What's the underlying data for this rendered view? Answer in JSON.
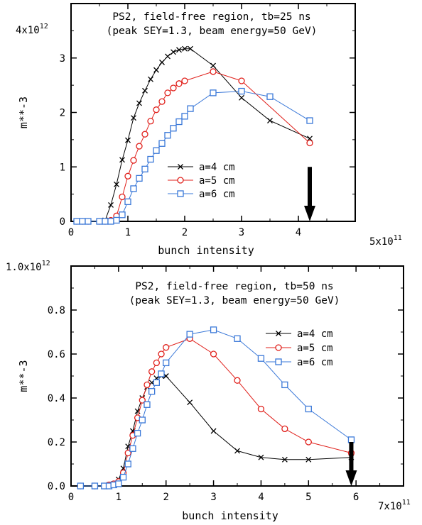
{
  "chart_data": [
    {
      "type": "line",
      "title": "PS2, field-free region, tb=25 ns",
      "subtitle": "(peak SEY=1.3, beam energy=50 GeV)",
      "xlabel": "bunch intensity",
      "ylabel": "m**-3",
      "x_scale_mantissa": "5x10",
      "x_scale_exponent": "11",
      "y_scale_mantissa": "4x10",
      "y_scale_exponent": "12",
      "xlim": [
        0,
        5
      ],
      "ylim": [
        0,
        4
      ],
      "x_ticks": [
        0,
        1,
        2,
        3,
        4
      ],
      "y_ticks": [
        0,
        1,
        2,
        3
      ],
      "grid": false,
      "legend_position": "lower-center",
      "arrow_x": 4.2,
      "series": [
        {
          "name": "a=4 cm",
          "marker": "x",
          "color": "#000000",
          "x": [
            0.1,
            0.2,
            0.3,
            0.5,
            0.6,
            0.7,
            0.8,
            0.9,
            1.0,
            1.1,
            1.2,
            1.3,
            1.4,
            1.5,
            1.6,
            1.7,
            1.8,
            1.9,
            2.0,
            2.1,
            2.5,
            3.0,
            3.5,
            4.2
          ],
          "y": [
            0,
            0,
            0,
            0,
            0.02,
            0.3,
            0.68,
            1.13,
            1.49,
            1.9,
            2.17,
            2.4,
            2.61,
            2.78,
            2.92,
            3.03,
            3.11,
            3.15,
            3.17,
            3.17,
            2.86,
            2.27,
            1.85,
            1.52
          ]
        },
        {
          "name": "a=5 cm",
          "marker": "circle",
          "color": "#e0201b",
          "x": [
            0.1,
            0.2,
            0.3,
            0.5,
            0.6,
            0.7,
            0.8,
            0.9,
            1.0,
            1.1,
            1.2,
            1.3,
            1.4,
            1.5,
            1.6,
            1.7,
            1.8,
            1.9,
            2.0,
            2.5,
            3.0,
            4.2
          ],
          "y": [
            0,
            0,
            0,
            0,
            0,
            0.02,
            0.1,
            0.45,
            0.83,
            1.12,
            1.38,
            1.6,
            1.84,
            2.05,
            2.2,
            2.36,
            2.45,
            2.53,
            2.58,
            2.75,
            2.58,
            1.44
          ]
        },
        {
          "name": "a=6 cm",
          "marker": "square",
          "color": "#3a78d8",
          "x": [
            0.1,
            0.2,
            0.3,
            0.5,
            0.6,
            0.7,
            0.8,
            0.9,
            1.0,
            1.1,
            1.2,
            1.3,
            1.4,
            1.5,
            1.6,
            1.7,
            1.8,
            1.9,
            2.0,
            2.1,
            2.5,
            3.0,
            3.5,
            4.2
          ],
          "y": [
            0,
            0,
            0,
            0,
            0,
            0,
            0.02,
            0.12,
            0.36,
            0.6,
            0.79,
            0.96,
            1.14,
            1.3,
            1.43,
            1.58,
            1.71,
            1.83,
            1.93,
            2.07,
            2.36,
            2.39,
            2.29,
            1.85
          ]
        }
      ]
    },
    {
      "type": "line",
      "title": "PS2, field-free region, tb=50 ns",
      "subtitle": "(peak SEY=1.3, beam energy=50 GeV)",
      "xlabel": "bunch intensity",
      "ylabel": "m**-3",
      "x_scale_mantissa": "7x10",
      "x_scale_exponent": "11",
      "y_top_label_mantissa": "1.0x10",
      "y_top_label_exponent": "12",
      "xlim": [
        0,
        7
      ],
      "ylim": [
        0,
        1.0
      ],
      "x_ticks": [
        0,
        1,
        2,
        3,
        4,
        5,
        6
      ],
      "y_ticks": [
        0,
        0.2,
        0.4,
        0.6,
        0.8
      ],
      "y_tick_labels": [
        "0.0",
        "0.2",
        "0.4",
        "0.6",
        "0.8"
      ],
      "grid": false,
      "legend_position": "top-right",
      "arrow_x": 5.9,
      "series": [
        {
          "name": "a=4 cm",
          "marker": "x",
          "color": "#000000",
          "x": [
            0.2,
            0.5,
            0.7,
            0.8,
            0.9,
            1.0,
            1.1,
            1.2,
            1.3,
            1.4,
            1.5,
            1.6,
            1.7,
            1.8,
            1.9,
            2.0,
            2.5,
            3.0,
            3.5,
            4.0,
            4.5,
            5.0,
            5.9
          ],
          "y": [
            0,
            0,
            0,
            0.005,
            0.01,
            0.03,
            0.08,
            0.18,
            0.25,
            0.34,
            0.4,
            0.45,
            0.47,
            0.49,
            0.5,
            0.5,
            0.38,
            0.25,
            0.16,
            0.13,
            0.12,
            0.12,
            0.13
          ]
        },
        {
          "name": "a=5 cm",
          "marker": "circle",
          "color": "#e0201b",
          "x": [
            0.2,
            0.5,
            0.7,
            0.8,
            0.9,
            1.0,
            1.1,
            1.2,
            1.3,
            1.4,
            1.5,
            1.6,
            1.7,
            1.8,
            1.9,
            2.0,
            2.5,
            3.0,
            3.5,
            4.0,
            4.5,
            5.0,
            5.9
          ],
          "y": [
            0,
            0,
            0,
            0.005,
            0.01,
            0.02,
            0.06,
            0.15,
            0.23,
            0.31,
            0.39,
            0.46,
            0.52,
            0.56,
            0.6,
            0.63,
            0.67,
            0.6,
            0.48,
            0.35,
            0.26,
            0.2,
            0.15
          ]
        },
        {
          "name": "a=6 cm",
          "marker": "square",
          "color": "#3a78d8",
          "x": [
            0.2,
            0.5,
            0.7,
            0.8,
            0.9,
            1.0,
            1.1,
            1.2,
            1.3,
            1.4,
            1.5,
            1.6,
            1.7,
            1.8,
            1.9,
            2.0,
            2.5,
            3.0,
            3.5,
            4.0,
            4.5,
            5.0,
            5.9
          ],
          "y": [
            0,
            0,
            0,
            0,
            0.005,
            0.01,
            0.04,
            0.1,
            0.17,
            0.24,
            0.3,
            0.37,
            0.43,
            0.47,
            0.51,
            0.56,
            0.69,
            0.71,
            0.67,
            0.58,
            0.46,
            0.35,
            0.21
          ]
        }
      ]
    }
  ]
}
